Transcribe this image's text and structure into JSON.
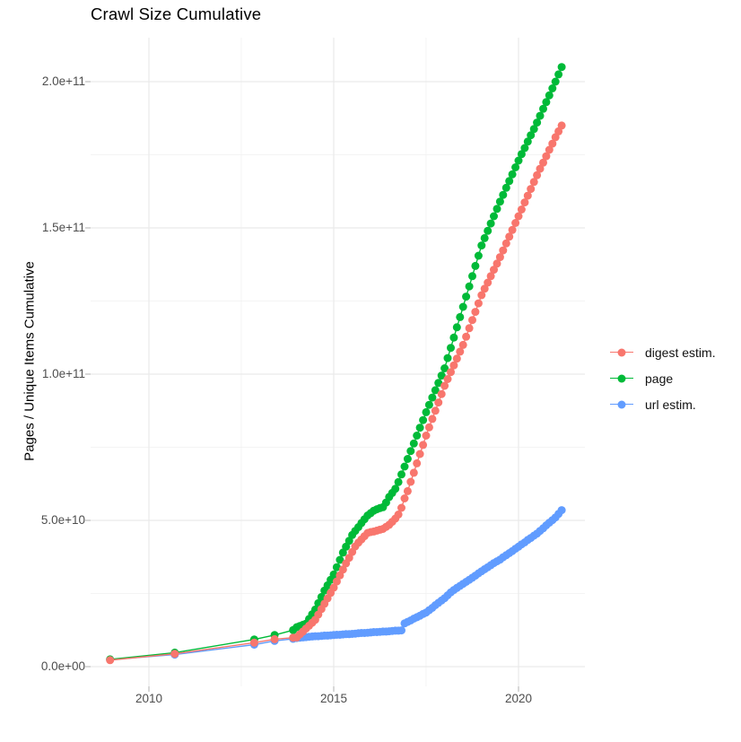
{
  "chart_data": {
    "type": "scatter",
    "title": "Crawl Size Cumulative",
    "xlabel": "",
    "ylabel": "Pages / Unique Items Cumulative",
    "legend_position": "right",
    "grid": true,
    "background": "#ffffff",
    "grid_major_color": "#eaeaea",
    "grid_minor_color": "#f1f1f1",
    "tick_color": "#bdbdbd",
    "tick_label_color": "#4d4d4d",
    "xlim": [
      2008.42,
      2021.8
    ],
    "ylim": [
      -6700000000,
      215000000000
    ],
    "values_unit": 1000000000,
    "x_ticks": [
      {
        "value": 2010,
        "label": "2010"
      },
      {
        "value": 2015,
        "label": "2015"
      },
      {
        "value": 2020,
        "label": "2020"
      }
    ],
    "x_minor_ticks": [
      2012.5,
      2017.5
    ],
    "y_ticks": [
      {
        "value": 0,
        "label": "0.0e+00"
      },
      {
        "value": 50,
        "label": "5.0e+10"
      },
      {
        "value": 100,
        "label": "1.0e+11"
      },
      {
        "value": 150,
        "label": "1.5e+11"
      },
      {
        "value": 200,
        "label": "2.0e+11"
      }
    ],
    "y_minor_ticks": [
      25,
      75,
      125,
      175
    ],
    "series": [
      {
        "name": "digest estim.",
        "color": "#F8766D",
        "points": [
          [
            2008.95,
            2.2
          ],
          [
            2010.7,
            4.4
          ],
          [
            2012.85,
            8.2
          ],
          [
            2013.4,
            9.4
          ],
          [
            2013.9,
            9.9
          ],
          [
            2014.0,
            10.0
          ],
          [
            2014.083,
            11.0
          ],
          [
            2014.167,
            12.0
          ],
          [
            2014.25,
            13.0
          ],
          [
            2014.333,
            14.0
          ],
          [
            2014.417,
            15.0
          ],
          [
            2014.5,
            16.0
          ],
          [
            2014.583,
            17.8
          ],
          [
            2014.667,
            19.7
          ],
          [
            2014.75,
            21.5
          ],
          [
            2014.833,
            23.3
          ],
          [
            2014.917,
            25.2
          ],
          [
            2015.0,
            27.0
          ],
          [
            2015.083,
            29.1
          ],
          [
            2015.167,
            31.2
          ],
          [
            2015.25,
            33.2
          ],
          [
            2015.333,
            35.3
          ],
          [
            2015.417,
            37.2
          ],
          [
            2015.5,
            39.2
          ],
          [
            2015.583,
            41.1
          ],
          [
            2015.667,
            42.4
          ],
          [
            2015.75,
            43.5
          ],
          [
            2015.833,
            44.6
          ],
          [
            2015.917,
            45.7
          ],
          [
            2016.0,
            46.0
          ],
          [
            2016.083,
            46.2
          ],
          [
            2016.167,
            46.5
          ],
          [
            2016.25,
            46.8
          ],
          [
            2016.333,
            47.1
          ],
          [
            2016.417,
            47.8
          ],
          [
            2016.5,
            48.5
          ],
          [
            2016.583,
            49.5
          ],
          [
            2016.667,
            50.6
          ],
          [
            2016.75,
            52.0
          ],
          [
            2016.833,
            54.3
          ],
          [
            2016.917,
            57.5
          ],
          [
            2017.0,
            60.0
          ],
          [
            2017.083,
            63.2
          ],
          [
            2017.167,
            66.3
          ],
          [
            2017.25,
            69.5
          ],
          [
            2017.333,
            72.7
          ],
          [
            2017.417,
            75.8
          ],
          [
            2017.5,
            79.0
          ],
          [
            2017.583,
            81.8
          ],
          [
            2017.667,
            84.7
          ],
          [
            2017.75,
            87.5
          ],
          [
            2017.833,
            90.3
          ],
          [
            2017.917,
            93.2
          ],
          [
            2018.0,
            96.0
          ],
          [
            2018.083,
            98.3
          ],
          [
            2018.167,
            100.7
          ],
          [
            2018.25,
            103.0
          ],
          [
            2018.333,
            105.3
          ],
          [
            2018.417,
            107.7
          ],
          [
            2018.5,
            110.0
          ],
          [
            2018.583,
            112.8
          ],
          [
            2018.667,
            115.7
          ],
          [
            2018.75,
            118.5
          ],
          [
            2018.833,
            121.3
          ],
          [
            2018.917,
            124.2
          ],
          [
            2019.0,
            127.0
          ],
          [
            2019.083,
            129.2
          ],
          [
            2019.167,
            131.3
          ],
          [
            2019.25,
            133.5
          ],
          [
            2019.333,
            135.7
          ],
          [
            2019.417,
            137.8
          ],
          [
            2019.5,
            140.0
          ],
          [
            2019.583,
            142.3
          ],
          [
            2019.667,
            144.7
          ],
          [
            2019.75,
            147.0
          ],
          [
            2019.833,
            149.3
          ],
          [
            2019.917,
            151.7
          ],
          [
            2020.0,
            154.0
          ],
          [
            2020.083,
            156.3
          ],
          [
            2020.167,
            158.7
          ],
          [
            2020.25,
            161.0
          ],
          [
            2020.333,
            163.3
          ],
          [
            2020.417,
            165.7
          ],
          [
            2020.5,
            168.0
          ],
          [
            2020.583,
            170.2
          ],
          [
            2020.667,
            172.3
          ],
          [
            2020.75,
            174.5
          ],
          [
            2020.833,
            176.7
          ],
          [
            2020.917,
            178.8
          ],
          [
            2021.0,
            181.0
          ],
          [
            2021.083,
            183.0
          ],
          [
            2021.167,
            185.0
          ]
        ]
      },
      {
        "name": "page",
        "color": "#00BA38",
        "points": [
          [
            2008.95,
            2.5
          ],
          [
            2010.7,
            4.8
          ],
          [
            2012.85,
            9.3
          ],
          [
            2013.4,
            10.8
          ],
          [
            2013.9,
            12.5
          ],
          [
            2014.0,
            13.5
          ],
          [
            2014.083,
            13.9
          ],
          [
            2014.167,
            14.3
          ],
          [
            2014.25,
            14.7
          ],
          [
            2014.333,
            16.3
          ],
          [
            2014.417,
            17.9
          ],
          [
            2014.5,
            19.5
          ],
          [
            2014.583,
            21.7
          ],
          [
            2014.667,
            23.8
          ],
          [
            2014.75,
            26.0
          ],
          [
            2014.833,
            27.8
          ],
          [
            2014.917,
            29.7
          ],
          [
            2015.0,
            31.5
          ],
          [
            2015.083,
            34.0
          ],
          [
            2015.167,
            36.5
          ],
          [
            2015.25,
            39.0
          ],
          [
            2015.333,
            41.0
          ],
          [
            2015.417,
            43.0
          ],
          [
            2015.5,
            45.0
          ],
          [
            2015.583,
            46.4
          ],
          [
            2015.667,
            47.7
          ],
          [
            2015.75,
            49.1
          ],
          [
            2015.833,
            50.4
          ],
          [
            2015.917,
            51.7
          ],
          [
            2016.0,
            52.5
          ],
          [
            2016.083,
            53.3
          ],
          [
            2016.167,
            53.8
          ],
          [
            2016.25,
            54.2
          ],
          [
            2016.333,
            54.5
          ],
          [
            2016.417,
            56.1
          ],
          [
            2016.5,
            58.0
          ],
          [
            2016.583,
            59.4
          ],
          [
            2016.667,
            60.8
          ],
          [
            2016.75,
            63.1
          ],
          [
            2016.833,
            65.7
          ],
          [
            2016.917,
            68.4
          ],
          [
            2017.0,
            71.0
          ],
          [
            2017.083,
            73.7
          ],
          [
            2017.167,
            76.3
          ],
          [
            2017.25,
            79.0
          ],
          [
            2017.333,
            81.7
          ],
          [
            2017.417,
            84.3
          ],
          [
            2017.5,
            87.0
          ],
          [
            2017.583,
            89.5
          ],
          [
            2017.667,
            92.0
          ],
          [
            2017.75,
            94.5
          ],
          [
            2017.833,
            97.0
          ],
          [
            2017.917,
            99.5
          ],
          [
            2018.0,
            102.0
          ],
          [
            2018.083,
            105.5
          ],
          [
            2018.167,
            109.0
          ],
          [
            2018.25,
            112.5
          ],
          [
            2018.333,
            116.0
          ],
          [
            2018.417,
            119.5
          ],
          [
            2018.5,
            123.0
          ],
          [
            2018.583,
            126.5
          ],
          [
            2018.667,
            130.0
          ],
          [
            2018.75,
            133.5
          ],
          [
            2018.833,
            137.0
          ],
          [
            2018.917,
            140.5
          ],
          [
            2019.0,
            144.0
          ],
          [
            2019.083,
            146.5
          ],
          [
            2019.167,
            149.0
          ],
          [
            2019.25,
            151.5
          ],
          [
            2019.333,
            154.0
          ],
          [
            2019.417,
            156.5
          ],
          [
            2019.5,
            159.0
          ],
          [
            2019.583,
            161.3
          ],
          [
            2019.667,
            163.7
          ],
          [
            2019.75,
            166.0
          ],
          [
            2019.833,
            168.3
          ],
          [
            2019.917,
            170.7
          ],
          [
            2020.0,
            173.0
          ],
          [
            2020.083,
            175.2
          ],
          [
            2020.167,
            177.3
          ],
          [
            2020.25,
            179.5
          ],
          [
            2020.333,
            181.7
          ],
          [
            2020.417,
            183.8
          ],
          [
            2020.5,
            186.0
          ],
          [
            2020.583,
            188.3
          ],
          [
            2020.667,
            190.7
          ],
          [
            2020.75,
            193.0
          ],
          [
            2020.833,
            195.3
          ],
          [
            2020.917,
            197.7
          ],
          [
            2021.0,
            200.0
          ],
          [
            2021.083,
            202.5
          ],
          [
            2021.167,
            205.0
          ]
        ]
      },
      {
        "name": "url estim.",
        "color": "#619CFF",
        "points": [
          [
            2008.95,
            2.4
          ],
          [
            2010.7,
            4.1
          ],
          [
            2012.85,
            7.5
          ],
          [
            2013.4,
            8.8
          ],
          [
            2013.9,
            9.5
          ],
          [
            2014.0,
            9.8
          ],
          [
            2014.083,
            9.9
          ],
          [
            2014.167,
            10.0
          ],
          [
            2014.25,
            10.1
          ],
          [
            2014.333,
            10.2
          ],
          [
            2014.417,
            10.3
          ],
          [
            2014.5,
            10.4
          ],
          [
            2014.583,
            10.4
          ],
          [
            2014.667,
            10.5
          ],
          [
            2014.75,
            10.6
          ],
          [
            2014.833,
            10.6
          ],
          [
            2014.917,
            10.7
          ],
          [
            2015.0,
            10.8
          ],
          [
            2015.083,
            10.9
          ],
          [
            2015.167,
            10.9
          ],
          [
            2015.25,
            11.0
          ],
          [
            2015.333,
            11.1
          ],
          [
            2015.417,
            11.1
          ],
          [
            2015.5,
            11.2
          ],
          [
            2015.583,
            11.3
          ],
          [
            2015.667,
            11.4
          ],
          [
            2015.75,
            11.5
          ],
          [
            2015.833,
            11.5
          ],
          [
            2015.917,
            11.6
          ],
          [
            2016.0,
            11.7
          ],
          [
            2016.083,
            11.8
          ],
          [
            2016.167,
            11.8
          ],
          [
            2016.25,
            11.9
          ],
          [
            2016.333,
            12.0
          ],
          [
            2016.417,
            12.0
          ],
          [
            2016.5,
            12.1
          ],
          [
            2016.583,
            12.2
          ],
          [
            2016.667,
            12.3
          ],
          [
            2016.75,
            12.3
          ],
          [
            2016.833,
            12.4
          ],
          [
            2016.917,
            14.8
          ],
          [
            2017.0,
            15.3
          ],
          [
            2017.083,
            15.8
          ],
          [
            2017.167,
            16.4
          ],
          [
            2017.25,
            16.9
          ],
          [
            2017.333,
            17.4
          ],
          [
            2017.417,
            18.0
          ],
          [
            2017.5,
            18.5
          ],
          [
            2017.583,
            19.3
          ],
          [
            2017.667,
            20.1
          ],
          [
            2017.75,
            21.0
          ],
          [
            2017.833,
            21.8
          ],
          [
            2017.917,
            22.6
          ],
          [
            2018.0,
            23.4
          ],
          [
            2018.083,
            24.4
          ],
          [
            2018.167,
            25.4
          ],
          [
            2018.25,
            26.2
          ],
          [
            2018.333,
            26.9
          ],
          [
            2018.417,
            27.6
          ],
          [
            2018.5,
            28.3
          ],
          [
            2018.583,
            29.0
          ],
          [
            2018.667,
            29.7
          ],
          [
            2018.75,
            30.4
          ],
          [
            2018.833,
            31.1
          ],
          [
            2018.917,
            31.9
          ],
          [
            2019.0,
            32.6
          ],
          [
            2019.083,
            33.3
          ],
          [
            2019.167,
            34.0
          ],
          [
            2019.25,
            34.7
          ],
          [
            2019.333,
            35.4
          ],
          [
            2019.417,
            36.0
          ],
          [
            2019.5,
            36.6
          ],
          [
            2019.583,
            37.4
          ],
          [
            2019.667,
            38.1
          ],
          [
            2019.75,
            38.8
          ],
          [
            2019.833,
            39.5
          ],
          [
            2019.917,
            40.3
          ],
          [
            2020.0,
            41.0
          ],
          [
            2020.083,
            41.8
          ],
          [
            2020.167,
            42.5
          ],
          [
            2020.25,
            43.3
          ],
          [
            2020.333,
            44.0
          ],
          [
            2020.417,
            44.8
          ],
          [
            2020.5,
            45.5
          ],
          [
            2020.583,
            46.4
          ],
          [
            2020.667,
            47.3
          ],
          [
            2020.75,
            48.3
          ],
          [
            2020.833,
            49.2
          ],
          [
            2020.917,
            50.1
          ],
          [
            2021.0,
            51.0
          ],
          [
            2021.083,
            52.2
          ],
          [
            2021.167,
            53.5
          ]
        ]
      }
    ]
  }
}
